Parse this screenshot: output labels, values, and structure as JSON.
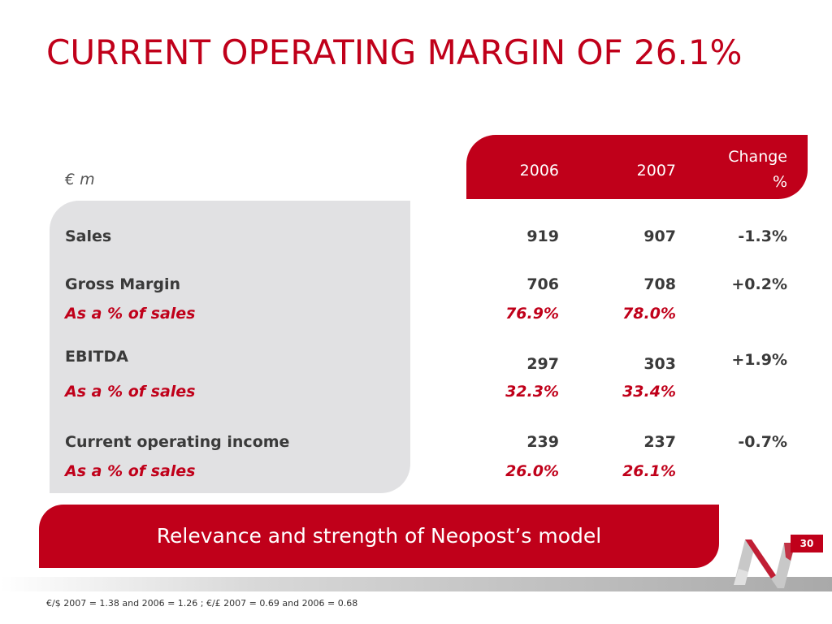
{
  "slide": {
    "title": "CURRENT OPERATING MARGIN OF 26.1%",
    "unit": "€ m",
    "page_number": "30"
  },
  "table": {
    "headers": {
      "y2006": "2006",
      "y2007": "2007",
      "change_line1": "Change",
      "change_line2": "%"
    },
    "rows": [
      {
        "label": "Sales",
        "v2006": "919",
        "v2007": "907",
        "change": "-1.3%"
      },
      {
        "label": "Gross Margin",
        "v2006": "706",
        "v2007": "708",
        "change": "+0.2%"
      },
      {
        "label": "As a % of sales",
        "v2006": "76.9%",
        "v2007": "78.0%"
      },
      {
        "label": "EBITDA",
        "v2006": "297",
        "v2007": "303",
        "change": "+1.9%"
      },
      {
        "label": "As a % of sales",
        "v2006": "32.3%",
        "v2007": "33.4%"
      },
      {
        "label": "Current operating income",
        "v2006": "239",
        "v2007": "237",
        "change": "-0.7%"
      },
      {
        "label": "As a % of sales",
        "v2006": "26.0%",
        "v2007": "26.1%"
      }
    ]
  },
  "banner": {
    "text": "Relevance and strength of Neopost’s model"
  },
  "footnote": "€/$ 2007 = 1.38 and 2006 = 1.26 ; €/£ 2007 = 0.69 and 2006 = 0.68",
  "colors": {
    "accent": "#c0001a",
    "panel": "#e1e1e3",
    "text": "#3a3a3a"
  }
}
